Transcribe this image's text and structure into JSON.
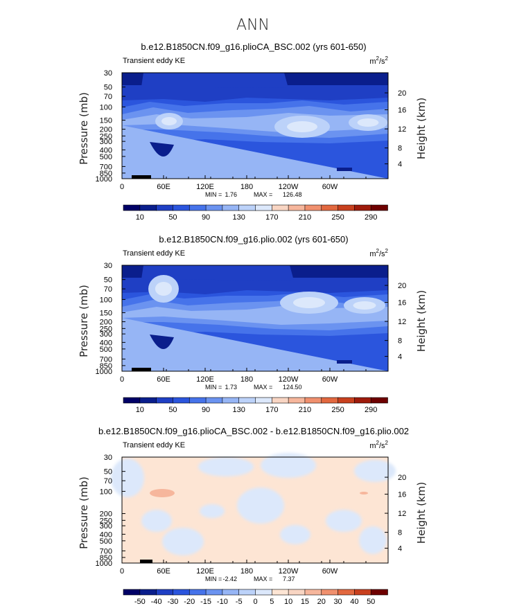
{
  "figure_title": "ANN",
  "chart_data": [
    {
      "type": "contour",
      "title": "b.e12.B1850CN.f09_g16.plioCA_BSC.002 (yrs 601-650)",
      "left_label": "Transient eddy KE",
      "units": {
        "base": "m",
        "exp1": "2",
        "mid": "/s",
        "exp2": "2"
      },
      "ylabel": "Pressure  (mb)",
      "ylabel_right": "Height  (km)",
      "x_ticks": [
        "0",
        "60E",
        "120E",
        "180",
        "120W",
        "60W"
      ],
      "y_ticks": [
        "30",
        "50",
        "70",
        "100",
        "150",
        "200",
        "250",
        "300",
        "400",
        "500",
        "700",
        "850",
        "1000"
      ],
      "y_ticks_right": [
        "20",
        "16",
        "12",
        "8",
        "4"
      ],
      "min": "1.76",
      "max": "126.48",
      "min_label": "MIN =",
      "max_label": "MAX =",
      "colorbar_labels": [
        "10",
        "50",
        "90",
        "130",
        "170",
        "210",
        "250",
        "290"
      ],
      "colors": [
        "#000066",
        "#0a1e8c",
        "#1f3fc4",
        "#2b55dd",
        "#4673ea",
        "#6b93f0",
        "#96b5f5",
        "#bcd2f9",
        "#dce8fb",
        "#f8d5c3",
        "#f6b69c",
        "#f0906e",
        "#e2683f",
        "#c8401e",
        "#9e1b0b",
        "#6e0000"
      ]
    },
    {
      "type": "contour",
      "title": "b.e12.B1850CN.f09_g16.plio.002 (yrs 601-650)",
      "left_label": "Transient eddy KE",
      "units": {
        "base": "m",
        "exp1": "2",
        "mid": "/s",
        "exp2": "2"
      },
      "ylabel": "Pressure  (mb)",
      "ylabel_right": "Height  (km)",
      "x_ticks": [
        "0",
        "60E",
        "120E",
        "180",
        "120W",
        "60W"
      ],
      "y_ticks": [
        "30",
        "50",
        "70",
        "100",
        "150",
        "200",
        "250",
        "300",
        "400",
        "500",
        "700",
        "850",
        "1000"
      ],
      "y_ticks_right": [
        "20",
        "16",
        "12",
        "8",
        "4"
      ],
      "min": "1.73",
      "max": "124.50",
      "min_label": "MIN =",
      "max_label": "MAX =",
      "colorbar_labels": [
        "10",
        "50",
        "90",
        "130",
        "170",
        "210",
        "250",
        "290"
      ],
      "colors": [
        "#000066",
        "#0a1e8c",
        "#1f3fc4",
        "#2b55dd",
        "#4673ea",
        "#6b93f0",
        "#96b5f5",
        "#bcd2f9",
        "#dce8fb",
        "#f8d5c3",
        "#f6b69c",
        "#f0906e",
        "#e2683f",
        "#c8401e",
        "#9e1b0b",
        "#6e0000"
      ]
    },
    {
      "type": "contour",
      "title": "b.e12.B1850CN.f09_g16.plioCA_BSC.002 - b.e12.B1850CN.f09_g16.plio.002",
      "left_label": "Transient eddy KE",
      "units": {
        "base": "m",
        "exp1": "2",
        "mid": "/s",
        "exp2": "2"
      },
      "ylabel": "Pressure  (mb)",
      "ylabel_right": "Height  (km)",
      "x_ticks": [
        "0",
        "60E",
        "120E",
        "180",
        "120W",
        "60W"
      ],
      "y_ticks": [
        "30",
        "50",
        "70",
        "100",
        "200",
        "250",
        "300",
        "400",
        "500",
        "700",
        "850",
        "1000"
      ],
      "y_ticks_right": [
        "20",
        "16",
        "12",
        "8",
        "4"
      ],
      "min": "-2.42",
      "max": "7.37",
      "min_label": "MIN =",
      "max_label": "MAX =",
      "colorbar_labels": [
        "-50",
        "-40",
        "-30",
        "-20",
        "-15",
        "-10",
        "-5",
        "0",
        "5",
        "10",
        "15",
        "20",
        "30",
        "40",
        "50"
      ],
      "colors": [
        "#000066",
        "#0a1e8c",
        "#1f3fc4",
        "#2b55dd",
        "#4673ea",
        "#6b93f0",
        "#96b5f5",
        "#bcd2f9",
        "#dce8fb",
        "#fde5d4",
        "#f8d5c3",
        "#f6b69c",
        "#f0906e",
        "#e2683f",
        "#c8401e",
        "#6e0000"
      ]
    }
  ]
}
